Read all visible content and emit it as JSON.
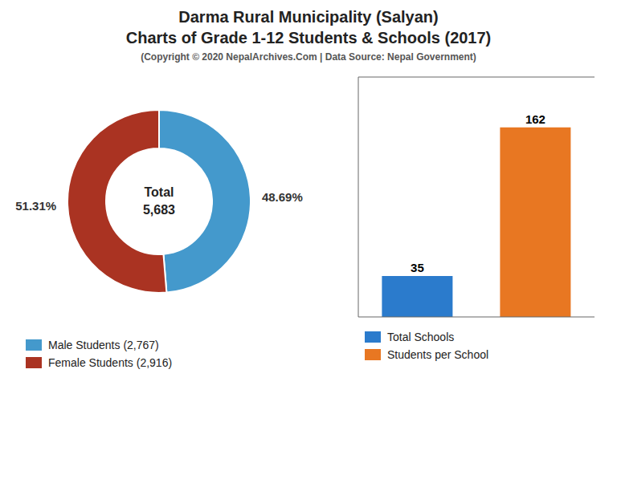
{
  "chart_data": [
    {
      "type": "pie",
      "title": "Darma Rural Municipality (Salyan)\nCharts of Grade 1-12 Students & Schools (2017)",
      "subtitle": "(Copyright © 2020 NepalArchives.Com | Data Source: Nepal Government)",
      "categories": [
        "Male Students (2,767)",
        "Female Students (2,916)"
      ],
      "values": [
        48.69,
        51.31
      ],
      "value_labels": [
        "48.69%",
        "51.31%"
      ],
      "colors": [
        "#4499cc",
        "#aa3322"
      ],
      "data_labels": true,
      "annotations": [
        "Total",
        "5,683"
      ],
      "legend": "bottom"
    },
    {
      "type": "bar",
      "categories": [
        "Total Schools",
        "Students per School"
      ],
      "values": [
        35,
        162
      ],
      "colors": [
        "#2b7bcc",
        "#e87722"
      ],
      "ylim": [
        0,
        205
      ],
      "data_labels": true,
      "tick_labels": false,
      "grid": false,
      "legend": "bottom"
    }
  ]
}
